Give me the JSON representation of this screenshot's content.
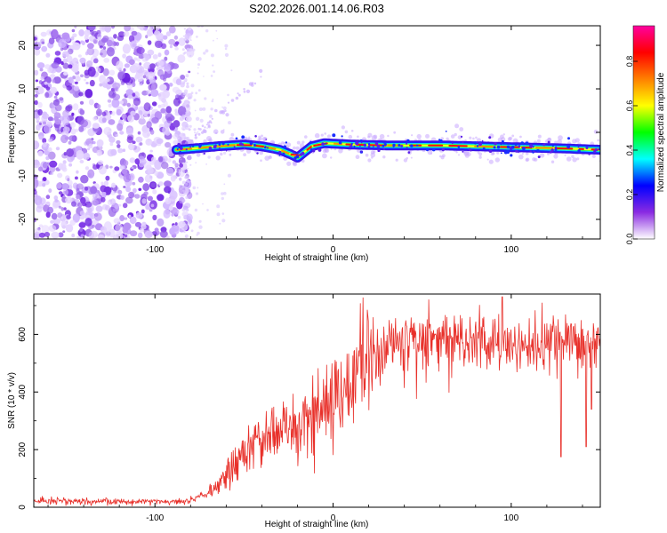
{
  "title": "S202.2026.001.14.06.R03",
  "chart_data": [
    {
      "type": "heatmap",
      "title": "S202.2026.001.14.06.R03",
      "xlabel": "Height of straight line (km)",
      "ylabel": "Frequency (Hz)",
      "xlim": [
        -168,
        150
      ],
      "ylim": [
        -24.5,
        24.5
      ],
      "x_ticks": [
        -100,
        0,
        100
      ],
      "x_tick_labels": [
        "-100",
        "0",
        "100"
      ],
      "y_ticks": [
        -20,
        -10,
        0,
        10,
        20
      ],
      "y_tick_labels": [
        "-20",
        "-10",
        "0",
        "10",
        "20"
      ],
      "noise_region_x": [
        -168,
        -84
      ],
      "ridge": {
        "x": [
          -88,
          -78,
          -65,
          -50,
          -40,
          -30,
          -24,
          -20,
          -16,
          -12,
          -5,
          10,
          30,
          60,
          90,
          110,
          130,
          150
        ],
        "y": [
          -4,
          -3.7,
          -3.2,
          -2.8,
          -3.2,
          -4,
          -5,
          -5.8,
          -4.5,
          -3.2,
          -2.5,
          -2.8,
          -3,
          -3,
          -3.3,
          -3.5,
          -3.7,
          -4
        ]
      },
      "colorbar": {
        "label": "Normalized spectral amplitude",
        "range": [
          0,
          0.96
        ],
        "ticks": [
          0.0,
          0.2,
          0.4,
          0.6,
          0.8
        ],
        "tick_labels": [
          "0.0",
          "0.2",
          "0.4",
          "0.6",
          "0.8"
        ],
        "colors": [
          "#ffffff",
          "#8a2be2",
          "#0000ff",
          "#00ffff",
          "#00ff00",
          "#ffff00",
          "#ff8000",
          "#ff0000",
          "#ff00a0"
        ]
      }
    },
    {
      "type": "line",
      "xlabel": "Height of straight line (km)",
      "ylabel": "SNR (10 * v/v)",
      "xlim": [
        -168,
        150
      ],
      "ylim": [
        0,
        740
      ],
      "x_ticks": [
        -100,
        0,
        100
      ],
      "x_tick_labels": [
        "-100",
        "0",
        "100"
      ],
      "y_ticks": [
        0,
        200,
        400,
        600
      ],
      "y_tick_labels": [
        "0",
        "200",
        "400",
        "600"
      ],
      "color": "#e8302a",
      "trend": {
        "x": [
          -168,
          -90,
          -80,
          -70,
          -60,
          -50,
          -40,
          -30,
          -20,
          -10,
          0,
          10,
          20,
          30,
          40,
          60,
          80,
          100,
          120,
          150
        ],
        "y": [
          20,
          20,
          25,
          50,
          110,
          180,
          230,
          270,
          290,
          320,
          370,
          440,
          500,
          550,
          575,
          585,
          580,
          560,
          560,
          565
        ]
      },
      "outliers": [
        {
          "x": 95,
          "y": 730
        },
        {
          "x": 128,
          "y": 175
        },
        {
          "x": 142,
          "y": 210
        },
        {
          "x": 145,
          "y": 340
        }
      ]
    }
  ]
}
